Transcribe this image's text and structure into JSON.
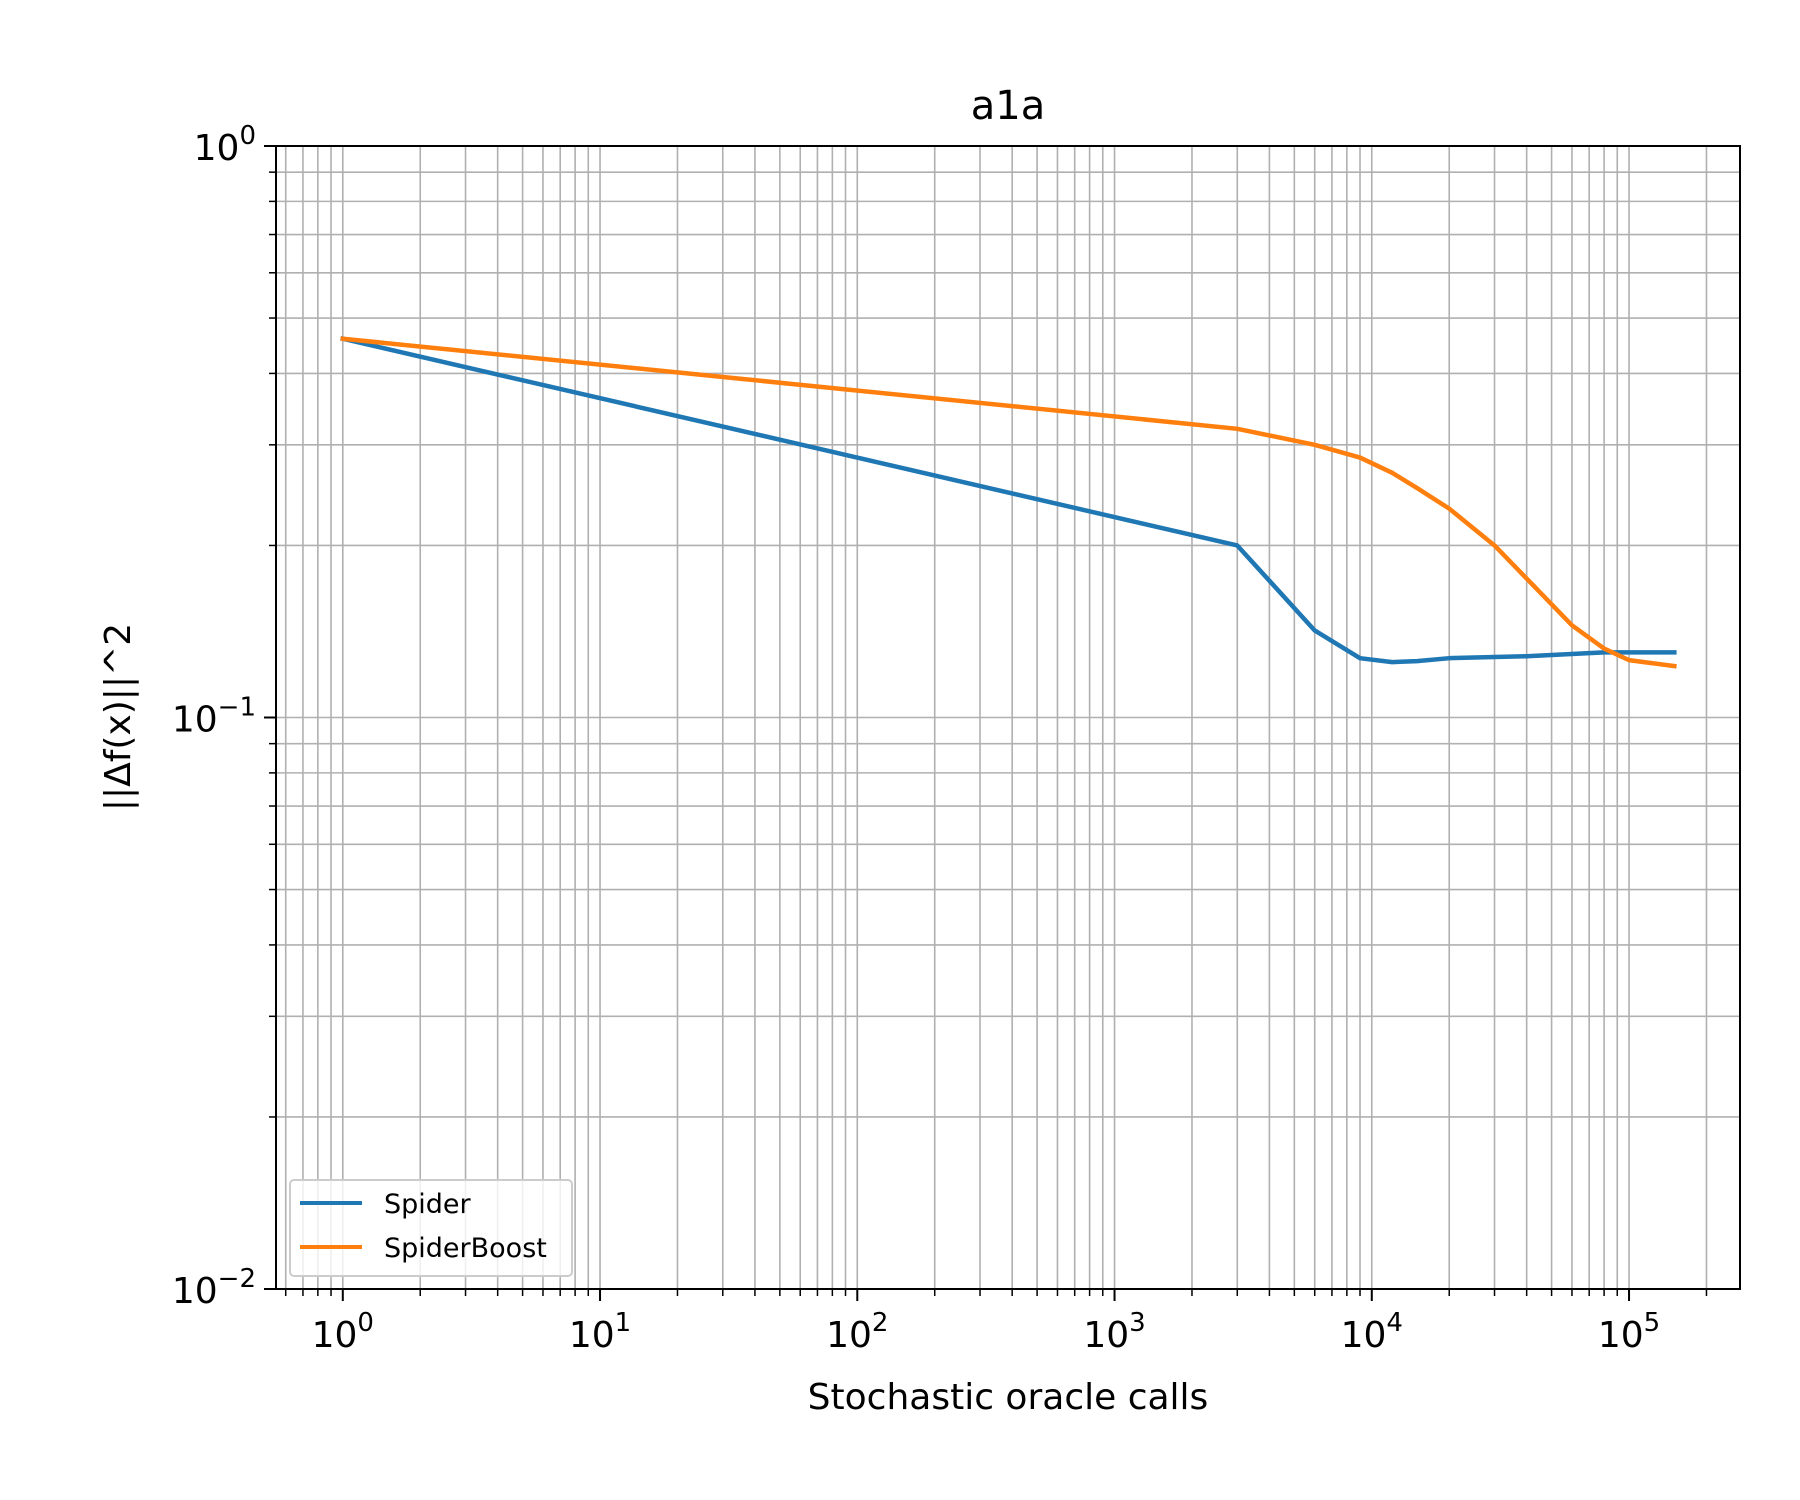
{
  "chart_data": {
    "type": "line",
    "title": "a1a",
    "xlabel": "Stochastic oracle calls",
    "ylabel": "||Δf(x)||^2",
    "xscale": "log",
    "yscale": "log",
    "xlim": [
      0.55,
      270000
    ],
    "ylim": [
      0.01,
      1
    ],
    "grid": "on (major and minor)",
    "legend_position": "lower-left",
    "x_ticks": [
      {
        "value": 1,
        "base": "10",
        "exp": "0"
      },
      {
        "value": 10,
        "base": "10",
        "exp": "1"
      },
      {
        "value": 100,
        "base": "10",
        "exp": "2"
      },
      {
        "value": 1000,
        "base": "10",
        "exp": "3"
      },
      {
        "value": 10000,
        "base": "10",
        "exp": "4"
      },
      {
        "value": 100000,
        "base": "10",
        "exp": "5"
      }
    ],
    "y_ticks": [
      {
        "value": 0.01,
        "base": "10",
        "exp": "−2"
      },
      {
        "value": 0.1,
        "base": "10",
        "exp": "−1"
      },
      {
        "value": 1,
        "base": "10",
        "exp": "0"
      }
    ],
    "series": [
      {
        "name": "Spider",
        "color": "#1f77b4",
        "x": [
          1,
          3000,
          6000,
          9000,
          12000,
          15000,
          20000,
          40000,
          80000,
          150000
        ],
        "y": [
          0.46,
          0.2,
          0.142,
          0.127,
          0.125,
          0.1255,
          0.127,
          0.128,
          0.13,
          0.13
        ]
      },
      {
        "name": "SpiderBoost",
        "color": "#ff7f0e",
        "x": [
          1,
          3000,
          6000,
          9000,
          12000,
          15000,
          20000,
          30000,
          40000,
          60000,
          80000,
          100000,
          150000
        ],
        "y": [
          0.46,
          0.32,
          0.3,
          0.285,
          0.268,
          0.252,
          0.232,
          0.2,
          0.175,
          0.145,
          0.132,
          0.126,
          0.123
        ]
      }
    ]
  }
}
